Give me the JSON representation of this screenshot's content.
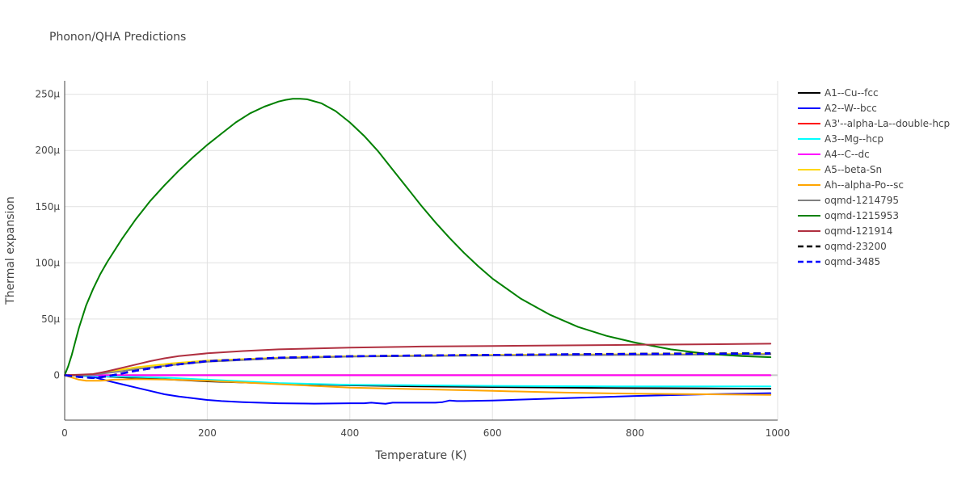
{
  "chart_data": {
    "type": "line",
    "title": "Phonon/QHA Predictions",
    "xlabel": "Temperature (K)",
    "ylabel": "Thermal expansion",
    "xlim": [
      0,
      1000
    ],
    "ylim": [
      -40,
      262
    ],
    "x_ticks": [
      0,
      200,
      400,
      600,
      800,
      1000
    ],
    "x_tick_labels": [
      "0",
      "200",
      "400",
      "600",
      "800",
      "1000"
    ],
    "y_ticks": [
      0,
      50,
      100,
      150,
      200,
      250
    ],
    "y_tick_labels": [
      "0",
      "50μ",
      "100μ",
      "150μ",
      "200μ",
      "250μ"
    ],
    "grid": true,
    "legend_position": "right",
    "series": [
      {
        "name": "A1--Cu--fcc",
        "color": "#000000",
        "dash": "solid",
        "x": [
          0,
          20,
          50,
          100,
          150,
          200,
          250,
          300,
          400,
          500,
          600,
          700,
          800,
          900,
          990
        ],
        "y": [
          0,
          -0.5,
          -1,
          -2.5,
          -4,
          -5.5,
          -6.5,
          -7.5,
          -9,
          -10,
          -10.5,
          -11,
          -11.5,
          -11.8,
          -12
        ]
      },
      {
        "name": "A2--W--bcc",
        "color": "#0000ff",
        "dash": "solid",
        "x": [
          0,
          20,
          40,
          60,
          80,
          100,
          120,
          140,
          160,
          180,
          200,
          220,
          250,
          300,
          350,
          400,
          420,
          430,
          440,
          450,
          460,
          480,
          500,
          510,
          520,
          530,
          540,
          550,
          560,
          600,
          700,
          800,
          900,
          990
        ],
        "y": [
          0,
          -0.3,
          -1.5,
          -5,
          -8,
          -11,
          -14,
          -17,
          -19,
          -20.5,
          -22,
          -23,
          -24,
          -25,
          -25.3,
          -25,
          -25,
          -24.5,
          -25,
          -25.5,
          -24.5,
          -24.5,
          -24.5,
          -24.5,
          -24.5,
          -24,
          -22.5,
          -23,
          -23,
          -22.5,
          -20.5,
          -18.5,
          -17,
          -16
        ]
      },
      {
        "name": "A3'--alpha-La--double-hcp",
        "color": "#ff0000",
        "dash": "solid",
        "x": [
          0,
          990
        ],
        "y": [
          0,
          0
        ]
      },
      {
        "name": "A3--Mg--hcp",
        "color": "#00ffff",
        "dash": "solid",
        "x": [
          0,
          20,
          50,
          100,
          150,
          200,
          300,
          400,
          500,
          600,
          700,
          800,
          900,
          990
        ],
        "y": [
          0,
          -0.5,
          -1,
          -1.5,
          -2.5,
          -4,
          -7,
          -8.5,
          -9,
          -9.5,
          -9.8,
          -10,
          -10,
          -10
        ]
      },
      {
        "name": "A4--C--dc",
        "color": "#ff00ff",
        "dash": "solid",
        "x": [
          0,
          990
        ],
        "y": [
          0,
          0
        ]
      },
      {
        "name": "A5--beta-Sn",
        "color": "#ffd700",
        "dash": "solid",
        "x": [
          0,
          20,
          40,
          60,
          80,
          100,
          150,
          200,
          300,
          400,
          500,
          600,
          700,
          800,
          900,
          990
        ],
        "y": [
          0,
          -0.5,
          1,
          3,
          5,
          7,
          10.5,
          13,
          15.5,
          17,
          17.5,
          18,
          18.3,
          18.5,
          18.8,
          19
        ]
      },
      {
        "name": "Ah--alpha-Po--sc",
        "color": "#ffa500",
        "dash": "solid",
        "x": [
          0,
          20,
          30,
          50,
          70,
          100,
          150,
          200,
          300,
          400,
          500,
          600,
          700,
          800,
          900,
          990
        ],
        "y": [
          0,
          -4,
          -5,
          -5,
          -4,
          -3.5,
          -4,
          -5,
          -8,
          -11,
          -12.5,
          -14,
          -15.5,
          -16.5,
          -17,
          -17.5
        ]
      },
      {
        "name": "oqmd-1214795",
        "color": "#808080",
        "dash": "solid",
        "x": [
          0,
          20,
          40,
          60,
          80,
          100,
          150,
          200,
          300,
          400,
          500,
          600,
          700,
          800,
          900,
          990
        ],
        "y": [
          0,
          -0.5,
          0.5,
          2,
          3.5,
          5.5,
          9,
          12,
          15,
          16.5,
          17,
          17.5,
          17.8,
          18,
          18.3,
          18.5
        ]
      },
      {
        "name": "oqmd-1215953",
        "color": "#008000",
        "dash": "solid",
        "x": [
          0,
          5,
          10,
          20,
          30,
          40,
          50,
          60,
          80,
          100,
          120,
          140,
          160,
          180,
          200,
          220,
          240,
          260,
          280,
          300,
          310,
          320,
          330,
          340,
          360,
          380,
          400,
          420,
          440,
          460,
          480,
          500,
          520,
          540,
          560,
          580,
          600,
          640,
          680,
          720,
          760,
          800,
          850,
          900,
          950,
          990
        ],
        "y": [
          0,
          8,
          18,
          42,
          62,
          77,
          90,
          101,
          121,
          139,
          155,
          169,
          182,
          194,
          205,
          215,
          225,
          233,
          239,
          243.5,
          245,
          246,
          246,
          245.5,
          242,
          235,
          225,
          213,
          199,
          183,
          167,
          151,
          136,
          122,
          109,
          97,
          86,
          68,
          54,
          43,
          35,
          29,
          23,
          19,
          17,
          16
        ]
      },
      {
        "name": "oqmd-121914",
        "color": "#b03040",
        "dash": "solid",
        "x": [
          0,
          20,
          40,
          60,
          80,
          100,
          120,
          140,
          160,
          200,
          250,
          300,
          400,
          500,
          600,
          700,
          800,
          900,
          990
        ],
        "y": [
          0,
          0.5,
          1,
          3.5,
          6.5,
          9.5,
          12.5,
          15,
          17,
          19.5,
          21.5,
          23,
          24.5,
          25.5,
          26,
          26.5,
          27,
          27.5,
          28
        ]
      },
      {
        "name": "oqmd-23200",
        "color": "#000000",
        "dash": "dash",
        "x": [
          0,
          20,
          40,
          60,
          80,
          100,
          150,
          200,
          300,
          400,
          500,
          600,
          700,
          800,
          900,
          990
        ],
        "y": [
          0,
          -1.5,
          -2.5,
          -1,
          1.5,
          4,
          9,
          12.5,
          15.5,
          16.8,
          17.5,
          18,
          18.5,
          19,
          19.3,
          19.5
        ]
      },
      {
        "name": "oqmd-3485",
        "color": "#0000ff",
        "dash": "dash",
        "x": [
          0,
          20,
          40,
          60,
          80,
          100,
          150,
          200,
          300,
          400,
          500,
          600,
          700,
          800,
          900,
          990
        ],
        "y": [
          0,
          -1.5,
          -2.5,
          -1,
          1.5,
          4,
          9,
          12.5,
          15.5,
          16.8,
          17.5,
          18,
          18.5,
          18.8,
          19,
          19.3
        ]
      }
    ]
  }
}
